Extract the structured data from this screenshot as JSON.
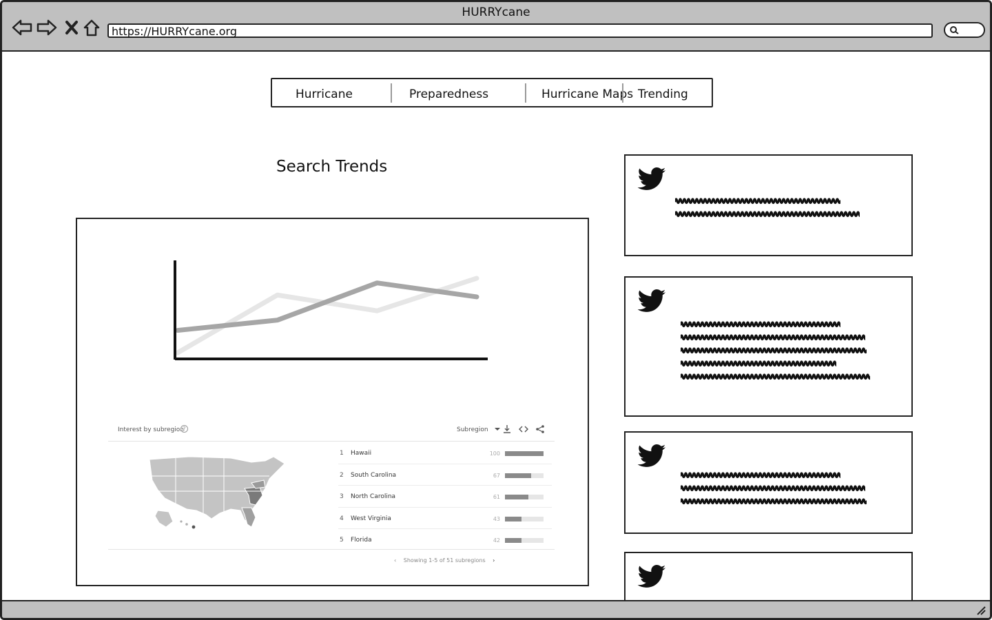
{
  "browser": {
    "title": "HURRYcane",
    "url": "https://HURRYcane.org"
  },
  "nav": {
    "tabs": [
      "Hurricane",
      "Preparedness",
      "Hurricane Maps",
      "Trending"
    ]
  },
  "page": {
    "section_title": "Search Trends"
  },
  "chart_data": {
    "type": "line",
    "title": "",
    "xlabel": "",
    "ylabel": "",
    "x": [
      0,
      1,
      2,
      3
    ],
    "ylim": [
      0,
      100
    ],
    "grid": false,
    "series": [
      {
        "values": [
          3,
          65,
          48,
          83
        ],
        "color": "#e6e6e6"
      },
      {
        "values": [
          27,
          38,
          78,
          63
        ],
        "color": "#a6a6a6"
      }
    ]
  },
  "subregion": {
    "heading": "Interest by subregion",
    "help": "?",
    "select_label": "Subregion",
    "rows": [
      {
        "rank": "1",
        "name": "Hawaii",
        "value": 100
      },
      {
        "rank": "2",
        "name": "South Carolina",
        "value": 67
      },
      {
        "rank": "3",
        "name": "North Carolina",
        "value": 61
      },
      {
        "rank": "4",
        "name": "West Virginia",
        "value": 43
      },
      {
        "rank": "5",
        "name": "Florida",
        "value": 42
      }
    ],
    "pager_text": "Showing 1-5 of 51 subregions"
  },
  "tweets": [
    {
      "lines": 2
    },
    {
      "lines": 5
    },
    {
      "lines": 3
    },
    {
      "lines": 0
    }
  ]
}
